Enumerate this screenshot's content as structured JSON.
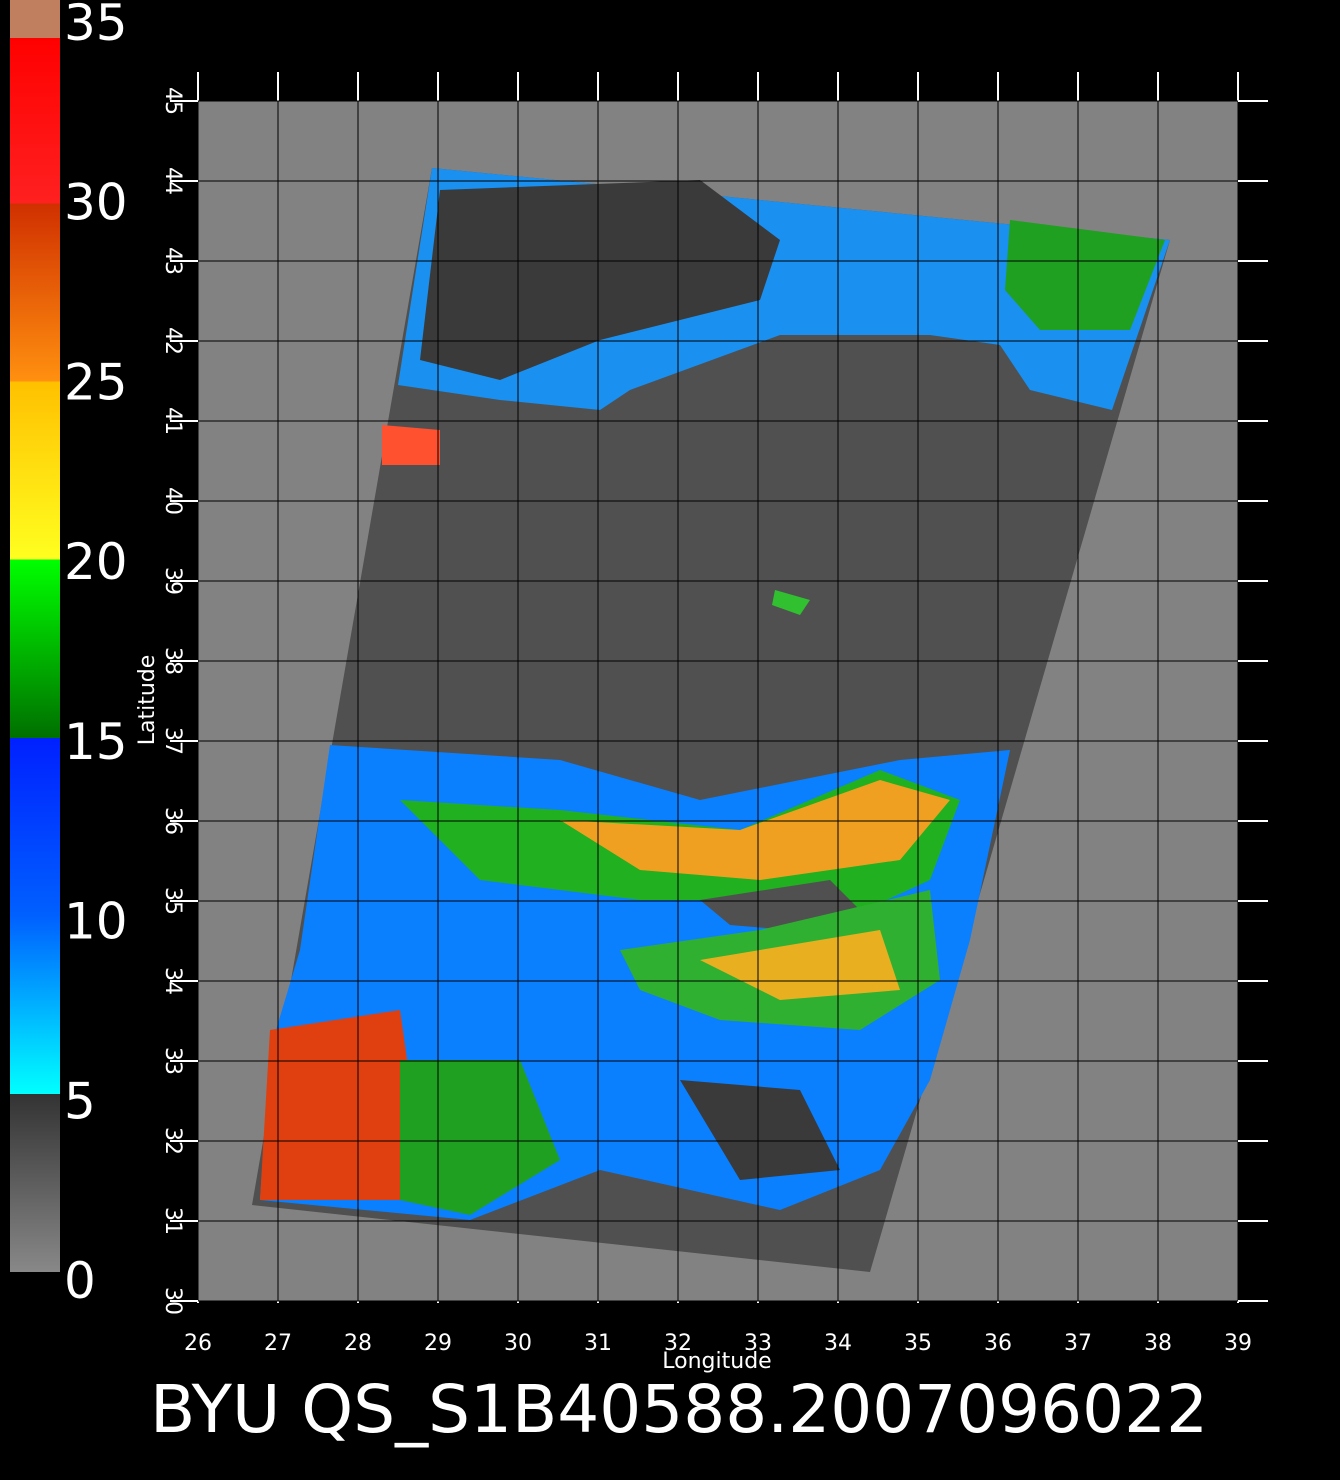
{
  "colorbar": {
    "labels": [
      0,
      5,
      10,
      15,
      20,
      25,
      30,
      35
    ],
    "lim": [
      0,
      35
    ]
  },
  "map": {
    "xlabel": "Longitude",
    "ylabel": "Latitude",
    "xlim": [
      26,
      39
    ],
    "ylim": [
      30,
      45
    ],
    "xticks": [
      26,
      27,
      28,
      29,
      30,
      31,
      32,
      33,
      34,
      35,
      36,
      37,
      38,
      39
    ],
    "yticks": [
      30,
      31,
      32,
      33,
      34,
      35,
      36,
      37,
      38,
      39,
      40,
      41,
      42,
      43,
      44,
      45
    ],
    "grid": true
  },
  "footer": {
    "title": "BYU QS_S1B40588.2007096022"
  }
}
